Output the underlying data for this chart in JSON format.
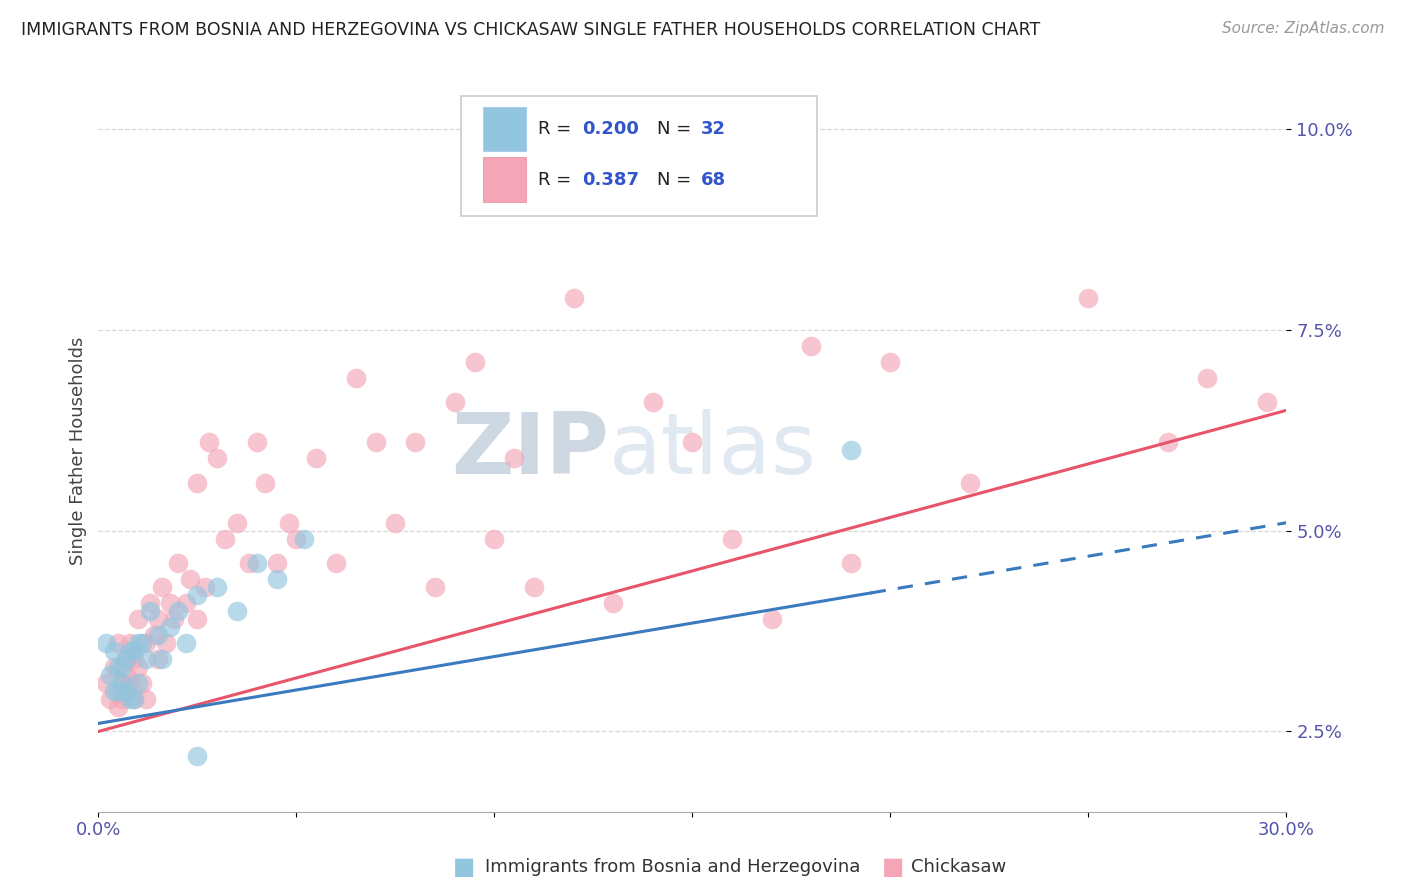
{
  "title": "IMMIGRANTS FROM BOSNIA AND HERZEGOVINA VS CHICKASAW SINGLE FATHER HOUSEHOLDS CORRELATION CHART",
  "source": "Source: ZipAtlas.com",
  "ylabel": "Single Father Households",
  "xlabel": "",
  "xlim": [
    0.0,
    0.3
  ],
  "ylim": [
    0.015,
    0.105
  ],
  "xticks": [
    0.0,
    0.05,
    0.1,
    0.15,
    0.2,
    0.25,
    0.3
  ],
  "xtick_labels": [
    "0.0%",
    "",
    "",
    "",
    "",
    "",
    "30.0%"
  ],
  "yticks": [
    0.025,
    0.05,
    0.075,
    0.1
  ],
  "ytick_labels": [
    "2.5%",
    "5.0%",
    "7.5%",
    "10.0%"
  ],
  "color_blue": "#92c5de",
  "color_pink": "#f4a6b8",
  "color_line_blue": "#3a7abf",
  "color_line_pink": "#e8546a",
  "background_color": "#ffffff",
  "grid_color": "#d8d8d8",
  "watermark_zip": "ZIP",
  "watermark_atlas": "atlas",
  "blue_points": [
    [
      0.002,
      0.036
    ],
    [
      0.003,
      0.032
    ],
    [
      0.004,
      0.035
    ],
    [
      0.004,
      0.03
    ],
    [
      0.005,
      0.033
    ],
    [
      0.005,
      0.03
    ],
    [
      0.006,
      0.033
    ],
    [
      0.006,
      0.031
    ],
    [
      0.007,
      0.034
    ],
    [
      0.007,
      0.03
    ],
    [
      0.008,
      0.035
    ],
    [
      0.008,
      0.029
    ],
    [
      0.009,
      0.035
    ],
    [
      0.009,
      0.029
    ],
    [
      0.01,
      0.036
    ],
    [
      0.01,
      0.031
    ],
    [
      0.011,
      0.036
    ],
    [
      0.012,
      0.034
    ],
    [
      0.013,
      0.04
    ],
    [
      0.015,
      0.037
    ],
    [
      0.016,
      0.034
    ],
    [
      0.018,
      0.038
    ],
    [
      0.02,
      0.04
    ],
    [
      0.022,
      0.036
    ],
    [
      0.025,
      0.042
    ],
    [
      0.03,
      0.043
    ],
    [
      0.035,
      0.04
    ],
    [
      0.04,
      0.046
    ],
    [
      0.045,
      0.044
    ],
    [
      0.052,
      0.049
    ],
    [
      0.105,
      0.092
    ],
    [
      0.19,
      0.06
    ],
    [
      0.025,
      0.022
    ]
  ],
  "pink_points": [
    [
      0.002,
      0.031
    ],
    [
      0.003,
      0.029
    ],
    [
      0.004,
      0.033
    ],
    [
      0.005,
      0.028
    ],
    [
      0.005,
      0.036
    ],
    [
      0.006,
      0.031
    ],
    [
      0.006,
      0.029
    ],
    [
      0.007,
      0.034
    ],
    [
      0.007,
      0.032
    ],
    [
      0.008,
      0.031
    ],
    [
      0.008,
      0.036
    ],
    [
      0.009,
      0.029
    ],
    [
      0.009,
      0.034
    ],
    [
      0.01,
      0.033
    ],
    [
      0.01,
      0.039
    ],
    [
      0.011,
      0.031
    ],
    [
      0.012,
      0.036
    ],
    [
      0.012,
      0.029
    ],
    [
      0.013,
      0.041
    ],
    [
      0.014,
      0.037
    ],
    [
      0.015,
      0.039
    ],
    [
      0.015,
      0.034
    ],
    [
      0.016,
      0.043
    ],
    [
      0.017,
      0.036
    ],
    [
      0.018,
      0.041
    ],
    [
      0.019,
      0.039
    ],
    [
      0.02,
      0.046
    ],
    [
      0.022,
      0.041
    ],
    [
      0.023,
      0.044
    ],
    [
      0.025,
      0.039
    ],
    [
      0.025,
      0.056
    ],
    [
      0.027,
      0.043
    ],
    [
      0.028,
      0.061
    ],
    [
      0.03,
      0.059
    ],
    [
      0.032,
      0.049
    ],
    [
      0.035,
      0.051
    ],
    [
      0.038,
      0.046
    ],
    [
      0.04,
      0.061
    ],
    [
      0.042,
      0.056
    ],
    [
      0.045,
      0.046
    ],
    [
      0.048,
      0.051
    ],
    [
      0.05,
      0.049
    ],
    [
      0.055,
      0.059
    ],
    [
      0.06,
      0.046
    ],
    [
      0.065,
      0.069
    ],
    [
      0.07,
      0.061
    ],
    [
      0.075,
      0.051
    ],
    [
      0.08,
      0.061
    ],
    [
      0.085,
      0.043
    ],
    [
      0.09,
      0.066
    ],
    [
      0.095,
      0.071
    ],
    [
      0.1,
      0.049
    ],
    [
      0.105,
      0.059
    ],
    [
      0.11,
      0.043
    ],
    [
      0.12,
      0.079
    ],
    [
      0.13,
      0.041
    ],
    [
      0.14,
      0.066
    ],
    [
      0.15,
      0.061
    ],
    [
      0.16,
      0.049
    ],
    [
      0.17,
      0.039
    ],
    [
      0.18,
      0.073
    ],
    [
      0.19,
      0.046
    ],
    [
      0.2,
      0.071
    ],
    [
      0.22,
      0.056
    ],
    [
      0.25,
      0.079
    ],
    [
      0.27,
      0.061
    ],
    [
      0.28,
      0.069
    ],
    [
      0.295,
      0.066
    ]
  ],
  "blue_line_x0": 0.0,
  "blue_line_x1": 0.3,
  "blue_line_y0": 0.026,
  "blue_line_y1": 0.051,
  "blue_line_solid_end": 0.195,
  "pink_line_x0": 0.0,
  "pink_line_x1": 0.3,
  "pink_line_y0": 0.025,
  "pink_line_y1": 0.065
}
